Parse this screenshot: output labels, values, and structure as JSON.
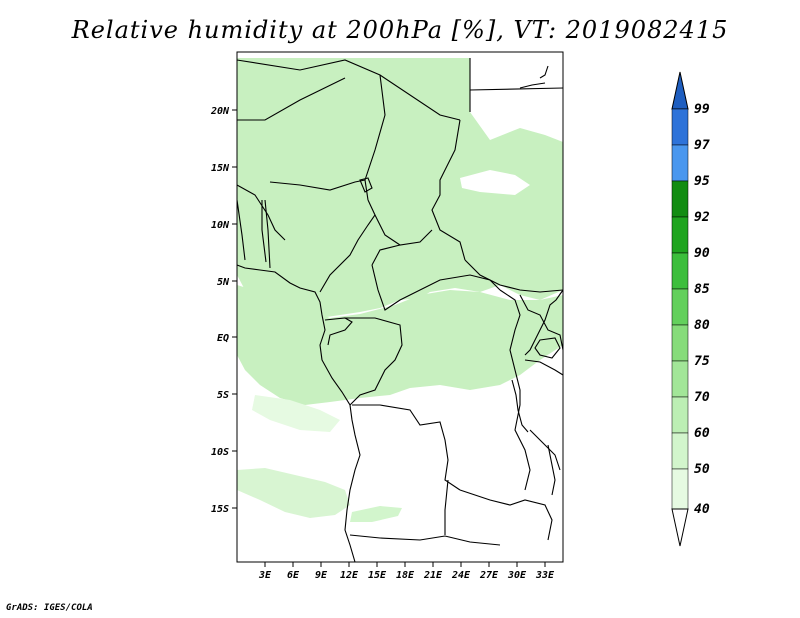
{
  "title": "Relative humidity at 200hPa [%], VT: 2019082415",
  "credit": "GrADS: IGES/COLA",
  "map": {
    "projection": "lat-lon",
    "lon_range": [
      0,
      34
    ],
    "lat_range": [
      -19,
      24.5
    ],
    "x_ticks": [
      "3E",
      "6E",
      "9E",
      "12E",
      "15E",
      "18E",
      "21E",
      "24E",
      "27E",
      "30E",
      "33E"
    ],
    "y_ticks": [
      "20N",
      "15N",
      "10N",
      "5N",
      "EQ",
      "5S",
      "10S",
      "15S"
    ],
    "fill_color_primary": "#c8f0c0",
    "fill_color_secondary": "#e6fae2",
    "coastline_color": "#000000"
  },
  "colorbar": {
    "levels": [
      "40",
      "50",
      "60",
      "70",
      "75",
      "80",
      "85",
      "90",
      "92",
      "95",
      "97",
      "99"
    ],
    "colors": [
      "#ffffff",
      "#e6fae2",
      "#d2f5cc",
      "#bceeb4",
      "#a2e698",
      "#86dc7a",
      "#63d05c",
      "#3cbe3c",
      "#1fa41f",
      "#128c12",
      "#4a97ee",
      "#2e73d9",
      "#1e5ec0"
    ]
  }
}
